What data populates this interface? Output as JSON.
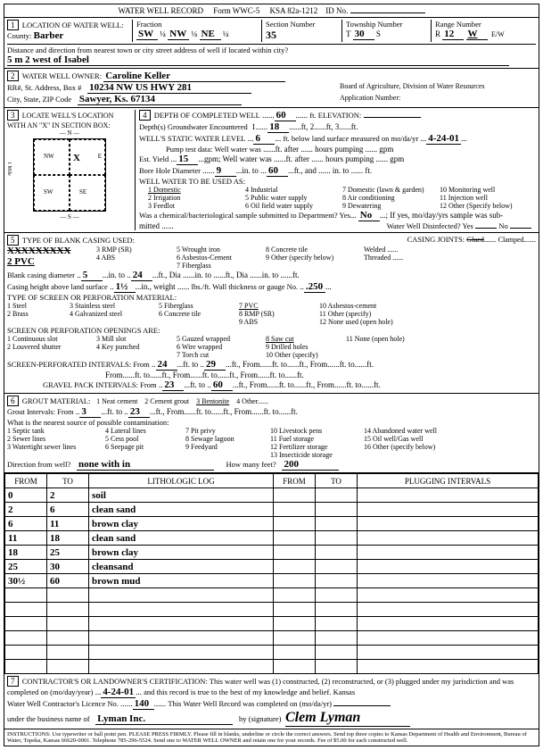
{
  "header": {
    "title": "WATER WELL RECORD",
    "form_no": "Form WWC-5",
    "ksa": "KSA 82a-1212",
    "id_label": "ID No."
  },
  "sec1": {
    "label": "LOCATION OF WATER WELL:",
    "county_label": "County:",
    "county": "Barber",
    "fraction_label": "Fraction",
    "frac1": "SW",
    "frac1q": "¼",
    "frac2": "NW",
    "frac2q": "¼",
    "frac3": "NE",
    "frac3q": "¼",
    "section_label": "Section Number",
    "section": "35",
    "township_label": "Township Number",
    "township": "T",
    "township_v": "30",
    "township_dir": "S",
    "range_label": "Range Number",
    "range": "R",
    "range_v": "12",
    "range_dir": "W",
    "range_ew": "E/W",
    "dist_label": "Distance and direction from nearest town or city street address of well if located within city?",
    "dist": "5 m 2 west of Isabel"
  },
  "sec2": {
    "label": "WATER WELL OWNER:",
    "name": "Caroline Keller",
    "addr_label": "RR#, St. Address, Box #",
    "addr": "10234 NW US HWY 281",
    "city_label": "City, State, ZIP Code",
    "city": "Sawyer, Ks. 67134",
    "board": "Board of Agriculture, Division of Water Resources",
    "appno": "Application Number:"
  },
  "sec3": {
    "label": "LOCATE WELL'S LOCATION WITH AN \"X\" IN SECTION BOX:",
    "n": "N",
    "s": "S",
    "e": "E",
    "w": "W",
    "nw": "NW",
    "ne": "NE",
    "sw": "SW",
    "se": "SE",
    "x": "X",
    "mile": "1 Mile"
  },
  "sec4": {
    "label": "DEPTH OF COMPLETED WELL",
    "depth": "60",
    "elev_label": "ft. ELEVATION:",
    "gw_label": "Depth(s) Groundwater Encountered",
    "gw1": "1",
    "gw1v": "18",
    "gw2": "2",
    "gw3": "3",
    "swl_label": "WELL'S STATIC WATER LEVEL",
    "swl": "6",
    "swl_suffix": "ft. below land surface measured on mo/da/yr",
    "swl_date": "4-24-01",
    "pump_label": "Pump test data:",
    "pump_was": "Well water was",
    "pump_after": "ft. after",
    "pump_hours": "hours pumping",
    "pump_gpm": "gpm",
    "yield_label": "Est. Yield",
    "yield": "15",
    "bore_label": "Bore Hole Diameter",
    "bore": "9",
    "bore_to": "60",
    "use_label": "WELL WATER TO BE USED AS:",
    "uses": [
      "1 Domestic",
      "2 Irrigation",
      "3 Feedlot",
      "4 Industrial",
      "5 Public water supply",
      "6 Oil field water supply",
      "7 Domestic (lawn & garden)",
      "8 Air conditioning",
      "9 Dewatering",
      "10 Monitoring well",
      "11 Injection well",
      "12 Other (Specify below)"
    ],
    "bact_label": "Was a chemical/bacteriological sample submitted to Department? Yes",
    "bact_no": "No",
    "disinfect": "Water Well Disinfected?  Yes",
    "disinfect_no": "No"
  },
  "sec5": {
    "label": "TYPE OF BLANK CASING USED:",
    "opts1": [
      "1 Steel",
      "2 PVC",
      "3 RMP (SR)",
      "4 ABS",
      "5 Wrought iron",
      "6 Asbestos-Cement",
      "7 Fiberglass",
      "8 Concrete tile",
      "9 Other (specify below)"
    ],
    "joints_label": "CASING JOINTS:",
    "joints": [
      "Glued",
      "Clamped",
      "Welded",
      "Threaded"
    ],
    "xx": "XXXXXXXXX",
    "pvc_sel": "2 PVC",
    "bc_label": "Blank casing diameter",
    "bc_dia": "5",
    "bc_to": "24",
    "ch_label": "Casing height above land surface",
    "ch": "1½",
    "ch_unit": "in., weight",
    "wall_label": "lbs./ft. Wall thickness or gauge No.",
    "wall": ".250",
    "perf_label": "TYPE OF SCREEN OR PERFORATION MATERIAL:",
    "perf_opts": [
      "1 Steel",
      "2 Brass",
      "3 Stainless steel",
      "4 Galvanized steel",
      "5 Fiberglass",
      "6 Concrete tile",
      "7 PVC",
      "8 RMP (SR)",
      "9 ABS",
      "10 Asbestos-cement",
      "11 Other (specify)",
      "12 None used (open hole)"
    ],
    "open_label": "SCREEN OR PERFORATION OPENINGS ARE:",
    "open_opts": [
      "1 Continuous slot",
      "2 Louvered shutter",
      "3 Mill slot",
      "4 Key punched",
      "5 Gauzed wrapped",
      "6 Wire wrapped",
      "7 Torch cut",
      "8 Saw cut",
      "9 Drilled holes",
      "10 Other (specify)",
      "11 None (open hole)"
    ],
    "spi_label": "SCREEN-PERFORATED INTERVALS: From",
    "spi_from": "24",
    "spi_to": "29",
    "gpi_label": "GRAVEL PACK INTERVALS: From",
    "gpi_from": "23",
    "gpi_to": "60"
  },
  "sec6": {
    "label": "GROUT MATERIAL:",
    "opts": [
      "1 Neat cement",
      "2 Cement grout",
      "3 Bentonite",
      "4 Other"
    ],
    "gi_label": "Grout Intervals: From",
    "gi_from": "3",
    "gi_to": "23",
    "contam_label": "What is the nearest source of possible contamination:",
    "contam_opts": [
      "1 Septic tank",
      "2 Sewer lines",
      "3 Watertight sewer lines",
      "4 Lateral lines",
      "5 Cess pool",
      "6 Seepage pit",
      "7 Pit privy",
      "8 Sewage lagoon",
      "9 Feedyard",
      "10 Livestock pens",
      "11 Fuel storage",
      "12 Fertilizer storage",
      "13 Insecticide storage",
      "14 Abandoned water well",
      "15 Oil well/Gas well",
      "16 Other (specify below)"
    ],
    "dir_label": "Direction from well?",
    "dir": "none with in",
    "howmany": "How many feet?",
    "howmany_v": "200"
  },
  "log": {
    "hdr": [
      "FROM",
      "TO",
      "LITHOLOGIC LOG",
      "FROM",
      "TO",
      "PLUGGING INTERVALS"
    ],
    "rows": [
      [
        "0",
        "2",
        "soil",
        "",
        "",
        ""
      ],
      [
        "2",
        "6",
        "clean sand",
        "",
        "",
        ""
      ],
      [
        "6",
        "11",
        "brown clay",
        "",
        "",
        ""
      ],
      [
        "11",
        "18",
        "clean sand",
        "",
        "",
        ""
      ],
      [
        "18",
        "25",
        "brown clay",
        "",
        "",
        ""
      ],
      [
        "25",
        "30",
        "cleansand",
        "",
        "",
        ""
      ],
      [
        "30½",
        "60",
        "brown mud",
        "",
        "",
        ""
      ],
      [
        "",
        "",
        "",
        "",
        "",
        ""
      ],
      [
        "",
        "",
        "",
        "",
        "",
        ""
      ],
      [
        "",
        "",
        "",
        "",
        "",
        ""
      ],
      [
        "",
        "",
        "",
        "",
        "",
        ""
      ],
      [
        "",
        "",
        "",
        "",
        "",
        ""
      ],
      [
        "",
        "",
        "",
        "",
        "",
        ""
      ]
    ]
  },
  "sec7": {
    "label": "CONTRACTOR'S OR LANDOWNER'S CERTIFICATION: This water well was (1) constructed, (2) reconstructed, or (3) plugged under my jurisdiction and was",
    "completed_label": "completed on (mo/day/year)",
    "completed": "4-24-01",
    "rec_true": "and this record is true to the best of my knowledge and belief. Kansas",
    "lic_label": "Water Well Contractor's Licence No.",
    "lic": "140",
    "rec_comp": "This Water Well Record was completed on (mo/da/yr)",
    "bus_label": "under the business name of",
    "bus": "Lyman Inc.",
    "sig_label": "by (signature)",
    "sig": "Clem Lyman"
  },
  "foot": {
    "text": "INSTRUCTIONS: Use typewriter or ball point pen. PLEASE PRESS FIRMLY. Please fill in blanks, underline or circle the correct answers. Send top three copies to Kansas Department of Health and Environment, Bureau of Water, Topeka, Kansas 66620-0001. Telephone 785-296-5524. Send one to WATER WELL OWNER and retain one for your records. Fee of $5.00 for each constructed well."
  }
}
